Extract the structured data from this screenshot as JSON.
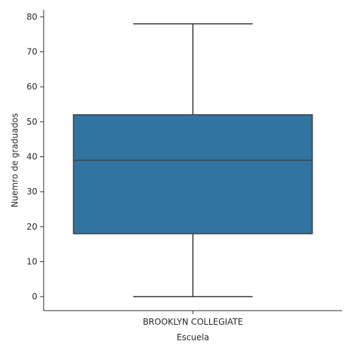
{
  "chart_data": {
    "type": "box",
    "xlabel": "Escuela",
    "ylabel": "Nuemro de graduados",
    "categories": [
      "BROOKLYN COLLEGIATE"
    ],
    "boxes": [
      {
        "category": "BROOKLYN COLLEGIATE",
        "whisker_low": 0,
        "q1": 18,
        "median": 39,
        "q3": 52,
        "whisker_high": 78
      }
    ],
    "ylim": [
      -4,
      82
    ],
    "yticks": [
      0,
      10,
      20,
      30,
      40,
      50,
      60,
      70,
      80
    ],
    "grid": false,
    "colors": {
      "box_fill": "#3274a1",
      "line": "#3f3f3f",
      "axis": "#262626"
    }
  }
}
